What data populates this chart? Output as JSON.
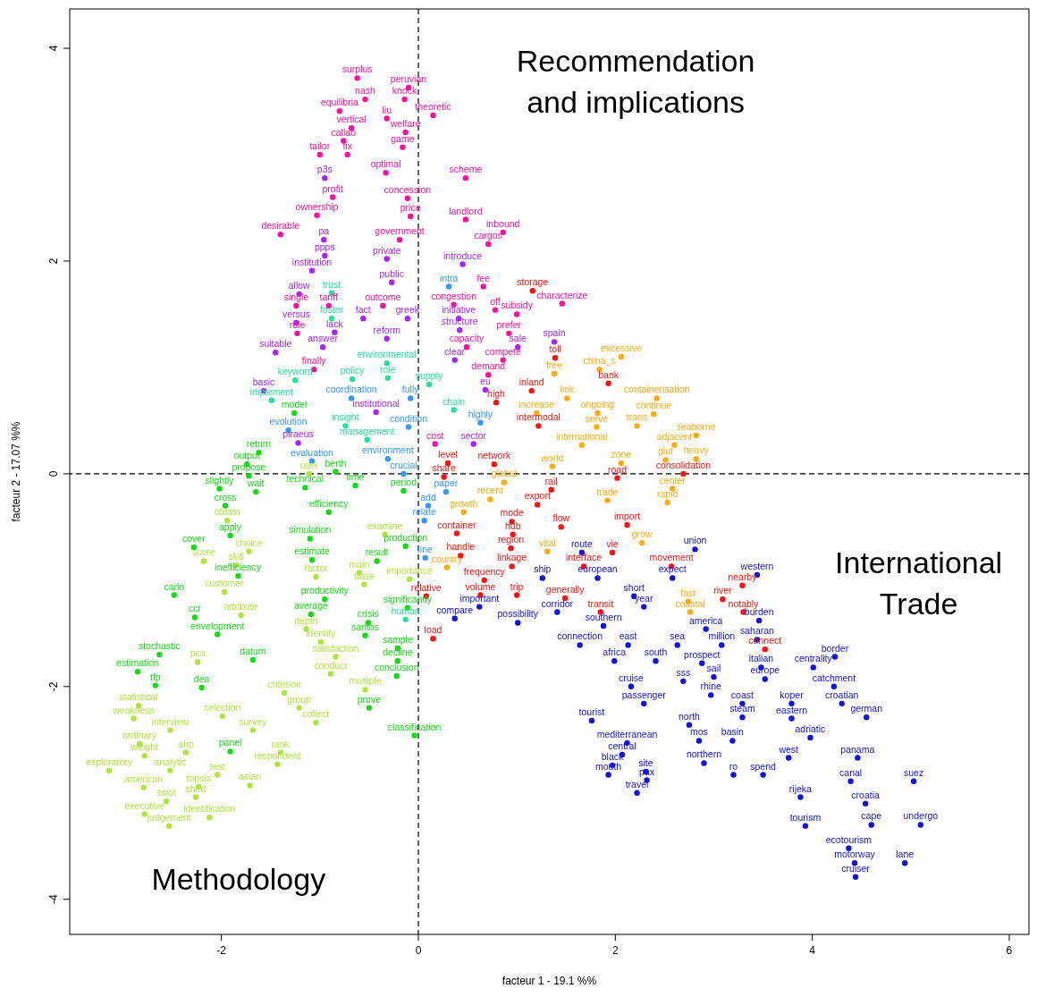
{
  "chart_data": {
    "type": "scatter",
    "xlabel": "facteur 1 - 19.1 %%",
    "ylabel": "facteur 2 - 17.07 %%",
    "xlim": [
      -3.54,
      6.2
    ],
    "ylim": [
      -4.33,
      4.37
    ],
    "xticks": [
      -2,
      0,
      2,
      4,
      6
    ],
    "yticks": [
      -4,
      -2,
      0,
      2,
      4
    ],
    "marker": "circle",
    "ref_lines": [
      {
        "axis": "x",
        "value": 0,
        "line_style": "dashed",
        "color": "#000000"
      },
      {
        "axis": "y",
        "value": 0,
        "line_style": "dashed",
        "color": "#000000"
      }
    ],
    "annotations": [
      "Recommendation and implications",
      "International Trade",
      "Methodology"
    ],
    "series": [
      {
        "color": "#ff0fa0",
        "x": [
          -0.62,
          -0.1,
          -0.54,
          -0.14,
          -0.8,
          -0.32,
          0.15,
          -0.68,
          -0.13,
          -0.76,
          -0.16,
          -1.0,
          -0.72,
          -0.33,
          0.48,
          -0.87,
          -0.11,
          -1.03,
          -0.08,
          0.48,
          -1.4,
          -0.19,
          0.86,
          0.71,
          0.66,
          -1.24,
          -0.91,
          -0.36,
          0.36,
          0.78,
          1.46,
          1.0,
          -1.23,
          0.92,
          -1.06,
          0.49,
          0.86,
          0.71,
          0.17
        ],
        "values": [
          3.72,
          3.63,
          3.52,
          3.52,
          3.41,
          3.34,
          3.37,
          3.25,
          3.21,
          3.13,
          3.07,
          3.0,
          3.0,
          2.83,
          2.78,
          2.6,
          2.59,
          2.43,
          2.42,
          2.39,
          2.25,
          2.2,
          2.27,
          2.16,
          1.76,
          1.58,
          1.58,
          1.58,
          1.59,
          1.54,
          1.6,
          1.5,
          1.32,
          1.32,
          0.98,
          1.19,
          1.07,
          0.93,
          0.28
        ],
        "value_labels": [
          "surplus",
          "peruvian",
          "nash",
          "knock",
          "equilibria",
          "liu",
          "theoretic",
          "vertical",
          "welfare",
          "callao",
          "game",
          "tailor",
          "fix",
          "optimal",
          "scheme",
          "profit",
          "concession",
          "ownership",
          "price",
          "landlord",
          "desirable",
          "government",
          "inbound",
          "cargos",
          "fee",
          "single",
          "tariff",
          "outcome",
          "congestion",
          "off",
          "characterize",
          "subsidy",
          "rule",
          "prefer",
          "finally",
          "capacity",
          "compete",
          "demand",
          "cost"
        ]
      },
      {
        "color": "#aa22ff",
        "x": [
          -0.95,
          -0.96,
          -0.95,
          -0.32,
          -1.08,
          0.45,
          -0.27,
          -1.21,
          -1.24,
          -0.56,
          -0.11,
          0.41,
          -0.85,
          -0.32,
          0.42,
          -0.97,
          1.01,
          1.38,
          -1.45,
          0.37,
          0.68,
          -1.57,
          -0.43,
          0.56,
          -1.22
        ],
        "values": [
          2.78,
          2.2,
          2.05,
          2.02,
          1.91,
          1.97,
          1.8,
          1.69,
          1.42,
          1.46,
          1.46,
          1.46,
          1.33,
          1.27,
          1.35,
          1.19,
          1.19,
          1.24,
          1.14,
          1.07,
          0.79,
          0.78,
          0.58,
          0.28,
          0.29
        ],
        "value_labels": [
          "p3s",
          "pa",
          "ppps",
          "private",
          "institution",
          "introduce",
          "public",
          "allow",
          "versus",
          "fact",
          "greek",
          "initiative",
          "lack",
          "reform",
          "structure",
          "answer",
          "sale",
          "spain",
          "suitable",
          "clear",
          "eu",
          "basic",
          "institutional",
          "sector",
          "piraeus"
        ]
      },
      {
        "color": "#22e39a",
        "x": [
          -0.88,
          -0.88,
          -0.32,
          -1.25,
          -0.67,
          -0.31,
          0.11,
          -1.49,
          0.36,
          -0.74,
          -0.52,
          -0.13
        ],
        "values": [
          1.7,
          1.46,
          1.04,
          0.88,
          0.89,
          0.9,
          0.84,
          0.69,
          0.6,
          0.45,
          0.32,
          -1.37
        ],
        "value_labels": [
          "trust",
          "foster",
          "environmental",
          "keyword",
          "policy",
          "role",
          "supply",
          "implement",
          "chain",
          "insight",
          "management",
          "human"
        ]
      },
      {
        "color": "#3399ff",
        "x": [
          0.31,
          -0.68,
          -0.08,
          -1.32,
          -0.1,
          0.63,
          -1.08,
          -0.31,
          -0.15,
          0.28,
          0.1,
          0.06,
          0.07
        ],
        "values": [
          1.76,
          0.71,
          0.71,
          0.41,
          0.44,
          0.48,
          0.12,
          0.14,
          0.0,
          -0.17,
          -0.3,
          -0.44,
          -0.79
        ],
        "value_labels": [
          "intra",
          "coordination",
          "fully",
          "evolution",
          "condition",
          "highly",
          "evaluation",
          "environment",
          "crucial",
          "paper",
          "add",
          "relate",
          "line"
        ]
      },
      {
        "color": "#11dd11",
        "x": [
          -1.26,
          -1.62,
          -1.74,
          -1.72,
          -0.84,
          -2.02,
          -1.65,
          -1.15,
          -0.64,
          -1.96,
          -0.15,
          -0.91,
          -1.91,
          -1.1,
          -0.13,
          -2.28,
          -1.08,
          -0.42,
          -1.83,
          -2.48,
          -0.95,
          -0.11,
          -2.27,
          -1.09,
          -0.51,
          -2.04,
          -0.54,
          -2.63,
          -1.68,
          -0.21,
          -0.21,
          -2.85,
          -0.22,
          -2.67,
          -2.2,
          -0.5,
          -0.04,
          -1.91
        ],
        "values": [
          0.57,
          0.2,
          0.09,
          -0.02,
          0.02,
          -0.14,
          -0.17,
          -0.13,
          -0.11,
          -0.3,
          -0.16,
          -0.36,
          -0.58,
          -0.61,
          -0.68,
          -0.69,
          -0.81,
          -0.82,
          -0.96,
          -1.14,
          -1.18,
          -1.26,
          -1.35,
          -1.32,
          -1.4,
          -1.51,
          -1.52,
          -1.7,
          -1.75,
          -1.64,
          -1.76,
          -1.86,
          -1.9,
          -1.99,
          -2.01,
          -2.2,
          -2.46,
          -2.61
        ],
        "value_labels": [
          "model",
          "return",
          "output",
          "propose",
          "berth",
          "slightly",
          "wait",
          "technical",
          "time",
          "cross",
          "period",
          "efficiency",
          "apply",
          "simulation",
          "production",
          "cover",
          "estimate",
          "result",
          "inefficiency",
          "carlo",
          "productivity",
          "significantly",
          "ccr",
          "average",
          "crisis",
          "envelopment",
          "santos",
          "stochastic",
          "datum",
          "sample",
          "decline",
          "estimation",
          "conclusion",
          "tfp",
          "dea",
          "prove",
          "classification",
          "panel"
        ]
      },
      {
        "color": "#aee63c",
        "x": [
          -1.11,
          -1.94,
          -0.34,
          -1.72,
          -2.18,
          -1.85,
          -1.04,
          -0.6,
          -0.55,
          -0.09,
          -1.97,
          -1.8,
          -1.14,
          -0.99,
          -2.24,
          -0.84,
          -1.36,
          -0.89,
          -0.54,
          -2.84,
          -1.21,
          -2.89,
          -1.99,
          -1.04,
          -2.52,
          -1.68,
          -2.83,
          -2.36,
          -2.78,
          -1.4,
          -3.14,
          -2.52,
          -2.04,
          -1.43,
          -2.79,
          -2.23,
          -1.71,
          -2.56,
          -2.26,
          -2.78,
          -2.12,
          -2.53
        ],
        "values": [
          0.0,
          -0.44,
          -0.57,
          -0.73,
          -0.82,
          -0.86,
          -0.97,
          -0.93,
          -1.04,
          -0.99,
          -1.11,
          -1.33,
          -1.46,
          -1.58,
          -1.77,
          -1.72,
          -2.06,
          -1.88,
          -2.03,
          -2.18,
          -2.2,
          -2.3,
          -2.28,
          -2.34,
          -2.41,
          -2.41,
          -2.54,
          -2.62,
          -2.65,
          -2.62,
          -2.79,
          -2.79,
          -2.83,
          -2.73,
          -2.95,
          -2.94,
          -2.93,
          -3.08,
          -3.04,
          -3.2,
          -3.23,
          -3.31
        ],
        "value_labels": [
          "user",
          "obtain",
          "examine",
          "choice",
          "score",
          "skill",
          "factor",
          "main",
          "base",
          "importance",
          "customer",
          "attribute",
          "depth",
          "identify",
          "pca",
          "satisfaction",
          "criterion",
          "conduct",
          "multiple",
          "statistical",
          "group",
          "weakness",
          "selection",
          "collect",
          "interview",
          "survey",
          "ordinary",
          "ahp",
          "weight",
          "rank",
          "exploratory",
          "analytic",
          "test",
          "respondent",
          "american",
          "topsis",
          "asian",
          "swot",
          "shed",
          "executive",
          "identification",
          "judgement"
        ]
      },
      {
        "color": "#ffaa11",
        "x": [
          2.06,
          1.38,
          1.84,
          1.51,
          2.42,
          1.2,
          1.82,
          2.39,
          1.81,
          2.22,
          1.66,
          2.82,
          2.6,
          1.36,
          2.06,
          2.51,
          2.82,
          0.87,
          2.58,
          1.92,
          2.53,
          0.73,
          0.46,
          2.27,
          1.31,
          0.29,
          2.74,
          2.76
        ],
        "values": [
          1.1,
          0.94,
          0.98,
          0.71,
          0.71,
          0.57,
          0.57,
          0.56,
          0.44,
          0.45,
          0.27,
          0.36,
          0.27,
          0.07,
          0.1,
          0.13,
          0.14,
          -0.08,
          -0.14,
          -0.25,
          -0.27,
          -0.24,
          -0.36,
          -0.65,
          -0.73,
          -0.88,
          -1.2,
          -1.3
        ],
        "value_labels": [
          "excessive",
          "free",
          "china_s",
          "link",
          "containerisation",
          "increase",
          "ongoing",
          "continue",
          "serve",
          "trans",
          "international",
          "seaborne",
          "adjacent",
          "world",
          "zone",
          "glut",
          "heavy",
          "global",
          "center",
          "trade",
          "rapid",
          "recent",
          "growth",
          "grow",
          "vital",
          "country",
          "fast",
          "coastal"
        ]
      },
      {
        "color": "#ff1111",
        "x": [
          1.16,
          1.39,
          1.93,
          1.15,
          0.79,
          1.22,
          0.3,
          0.77,
          0.26,
          2.02,
          2.69,
          1.35,
          1.21,
          0.95,
          1.45,
          2.12,
          0.96,
          0.39,
          0.94,
          0.43,
          1.97,
          0.95,
          1.68,
          2.57,
          0.67,
          3.29,
          0.08,
          0.63,
          1.0,
          1.49,
          3.09,
          1.85,
          3.3,
          0.15,
          3.52
        ],
        "values": [
          1.72,
          1.09,
          0.85,
          0.78,
          0.67,
          0.45,
          0.1,
          0.09,
          -0.03,
          -0.04,
          0.0,
          -0.15,
          -0.29,
          -0.45,
          -0.5,
          -0.48,
          -0.57,
          -0.56,
          -0.7,
          -0.77,
          -0.74,
          -0.87,
          -0.87,
          -0.87,
          -1.0,
          -1.05,
          -1.15,
          -1.14,
          -1.14,
          -1.17,
          -1.18,
          -1.3,
          -1.3,
          -1.55,
          -1.65
        ],
        "value_labels": [
          "storage",
          "toll",
          "bank",
          "inland",
          "high",
          "intermodal",
          "level",
          "network",
          "share",
          "road",
          "consolidation",
          "rail",
          "export",
          "mode",
          "flow",
          "import",
          "hub",
          "container",
          "region",
          "handle",
          "vie",
          "linkage",
          "interface",
          "movement",
          "frequency",
          "nearby",
          "relative",
          "volume",
          "trip",
          "generally",
          "river",
          "transit",
          "notably",
          "load",
          "connect"
        ]
      },
      {
        "color": "#1111dd",
        "x": [
          1.66,
          2.81,
          1.26,
          1.82,
          2.58,
          3.44,
          2.19,
          2.29,
          0.62,
          1.41,
          0.37,
          1.01,
          1.88,
          2.92,
          3.46,
          3.44,
          1.64,
          2.13,
          2.63,
          3.08,
          1.99,
          2.41,
          2.88,
          3.48,
          4.01,
          4.23,
          2.16,
          2.69,
          3.0,
          2.97,
          3.52,
          4.22,
          2.29,
          3.29,
          3.79,
          4.3,
          1.76,
          3.29,
          2.75,
          3.79,
          4.55,
          3.98,
          2.12,
          2.85,
          3.19,
          2.07,
          1.97,
          1.93,
          2.31,
          2.32,
          2.9,
          3.2,
          3.5,
          2.22,
          3.76,
          4.46,
          4.39,
          5.03,
          3.88,
          4.54,
          3.93,
          4.6,
          5.1,
          4.37,
          4.43,
          4.94,
          4.44
        ],
        "values": [
          -0.74,
          -0.71,
          -0.98,
          -0.98,
          -0.98,
          -0.95,
          -1.15,
          -1.25,
          -1.25,
          -1.3,
          -1.36,
          -1.4,
          -1.43,
          -1.46,
          -1.38,
          -1.56,
          -1.61,
          -1.61,
          -1.61,
          -1.61,
          -1.76,
          -1.76,
          -1.78,
          -1.82,
          -1.82,
          -1.72,
          -2.0,
          -1.95,
          -1.91,
          -2.08,
          -1.93,
          -2.0,
          -2.16,
          -2.16,
          -2.16,
          -2.16,
          -2.32,
          -2.29,
          -2.36,
          -2.3,
          -2.29,
          -2.48,
          -2.53,
          -2.51,
          -2.51,
          -2.64,
          -2.74,
          -2.83,
          -2.8,
          -2.88,
          -2.72,
          -2.83,
          -2.83,
          -3.0,
          -2.67,
          -2.67,
          -2.89,
          -2.89,
          -3.04,
          -3.1,
          -3.31,
          -3.3,
          -3.3,
          -3.52,
          -3.66,
          -3.66,
          -3.79
        ],
        "value_labels": [
          "route",
          "union",
          "ship",
          "european",
          "expect",
          "western",
          "short",
          "year",
          "important",
          "corridor",
          "compare",
          "possibility",
          "southern",
          "america",
          "burden",
          "saharan",
          "connection",
          "east",
          "sea",
          "million",
          "africa",
          "south",
          "prospect",
          "italian",
          "centrality",
          "border",
          "cruise",
          "sss",
          "sail",
          "rhine",
          "europe",
          "catchment",
          "passenger",
          "coast",
          "koper",
          "croatian",
          "tourist",
          "steam",
          "north",
          "eastern",
          "german",
          "adriatic",
          "mediterranean",
          "mos",
          "basin",
          "central",
          "black",
          "mouth",
          "site",
          "pax",
          "northern",
          "ro",
          "spend",
          "travel",
          "west",
          "panama",
          "canal",
          "suez",
          "rijeka",
          "croatia",
          "tourism",
          "cape",
          "undergo",
          "ecotourism",
          "motorway",
          "lane",
          "cruiser"
        ]
      }
    ]
  }
}
